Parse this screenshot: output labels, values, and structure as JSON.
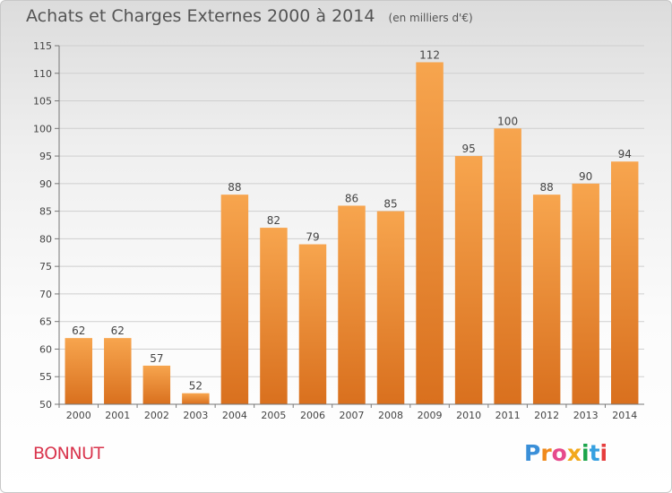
{
  "header": {
    "title": "Achats et Charges Externes 2000 à 2014",
    "unit": "(en milliers d'€)"
  },
  "footer": {
    "commune": "BONNUT",
    "logo_letters": [
      "P",
      "r",
      "o",
      "x",
      "i",
      "t",
      "i"
    ],
    "logo_colors": [
      "#3a8fd8",
      "#f08a1c",
      "#e64a8c",
      "#f2a81c",
      "#1aa44a",
      "#36a0e0",
      "#e63d3d"
    ]
  },
  "chart_data": {
    "type": "bar",
    "categories": [
      "2000",
      "2001",
      "2002",
      "2003",
      "2004",
      "2005",
      "2006",
      "2007",
      "2008",
      "2009",
      "2010",
      "2011",
      "2012",
      "2013",
      "2014"
    ],
    "values": [
      62,
      62,
      57,
      52,
      88,
      82,
      79,
      86,
      85,
      112,
      95,
      100,
      88,
      90,
      94
    ],
    "title": "Achats et Charges Externes 2000 à 2014",
    "xlabel": "",
    "ylabel": "",
    "ylim": [
      50,
      115
    ],
    "yticks": [
      50,
      55,
      60,
      65,
      70,
      75,
      80,
      85,
      90,
      95,
      100,
      105,
      110,
      115
    ],
    "grid": true,
    "bar_color_top": "#f7a54e",
    "bar_color_bottom": "#d9701e"
  }
}
